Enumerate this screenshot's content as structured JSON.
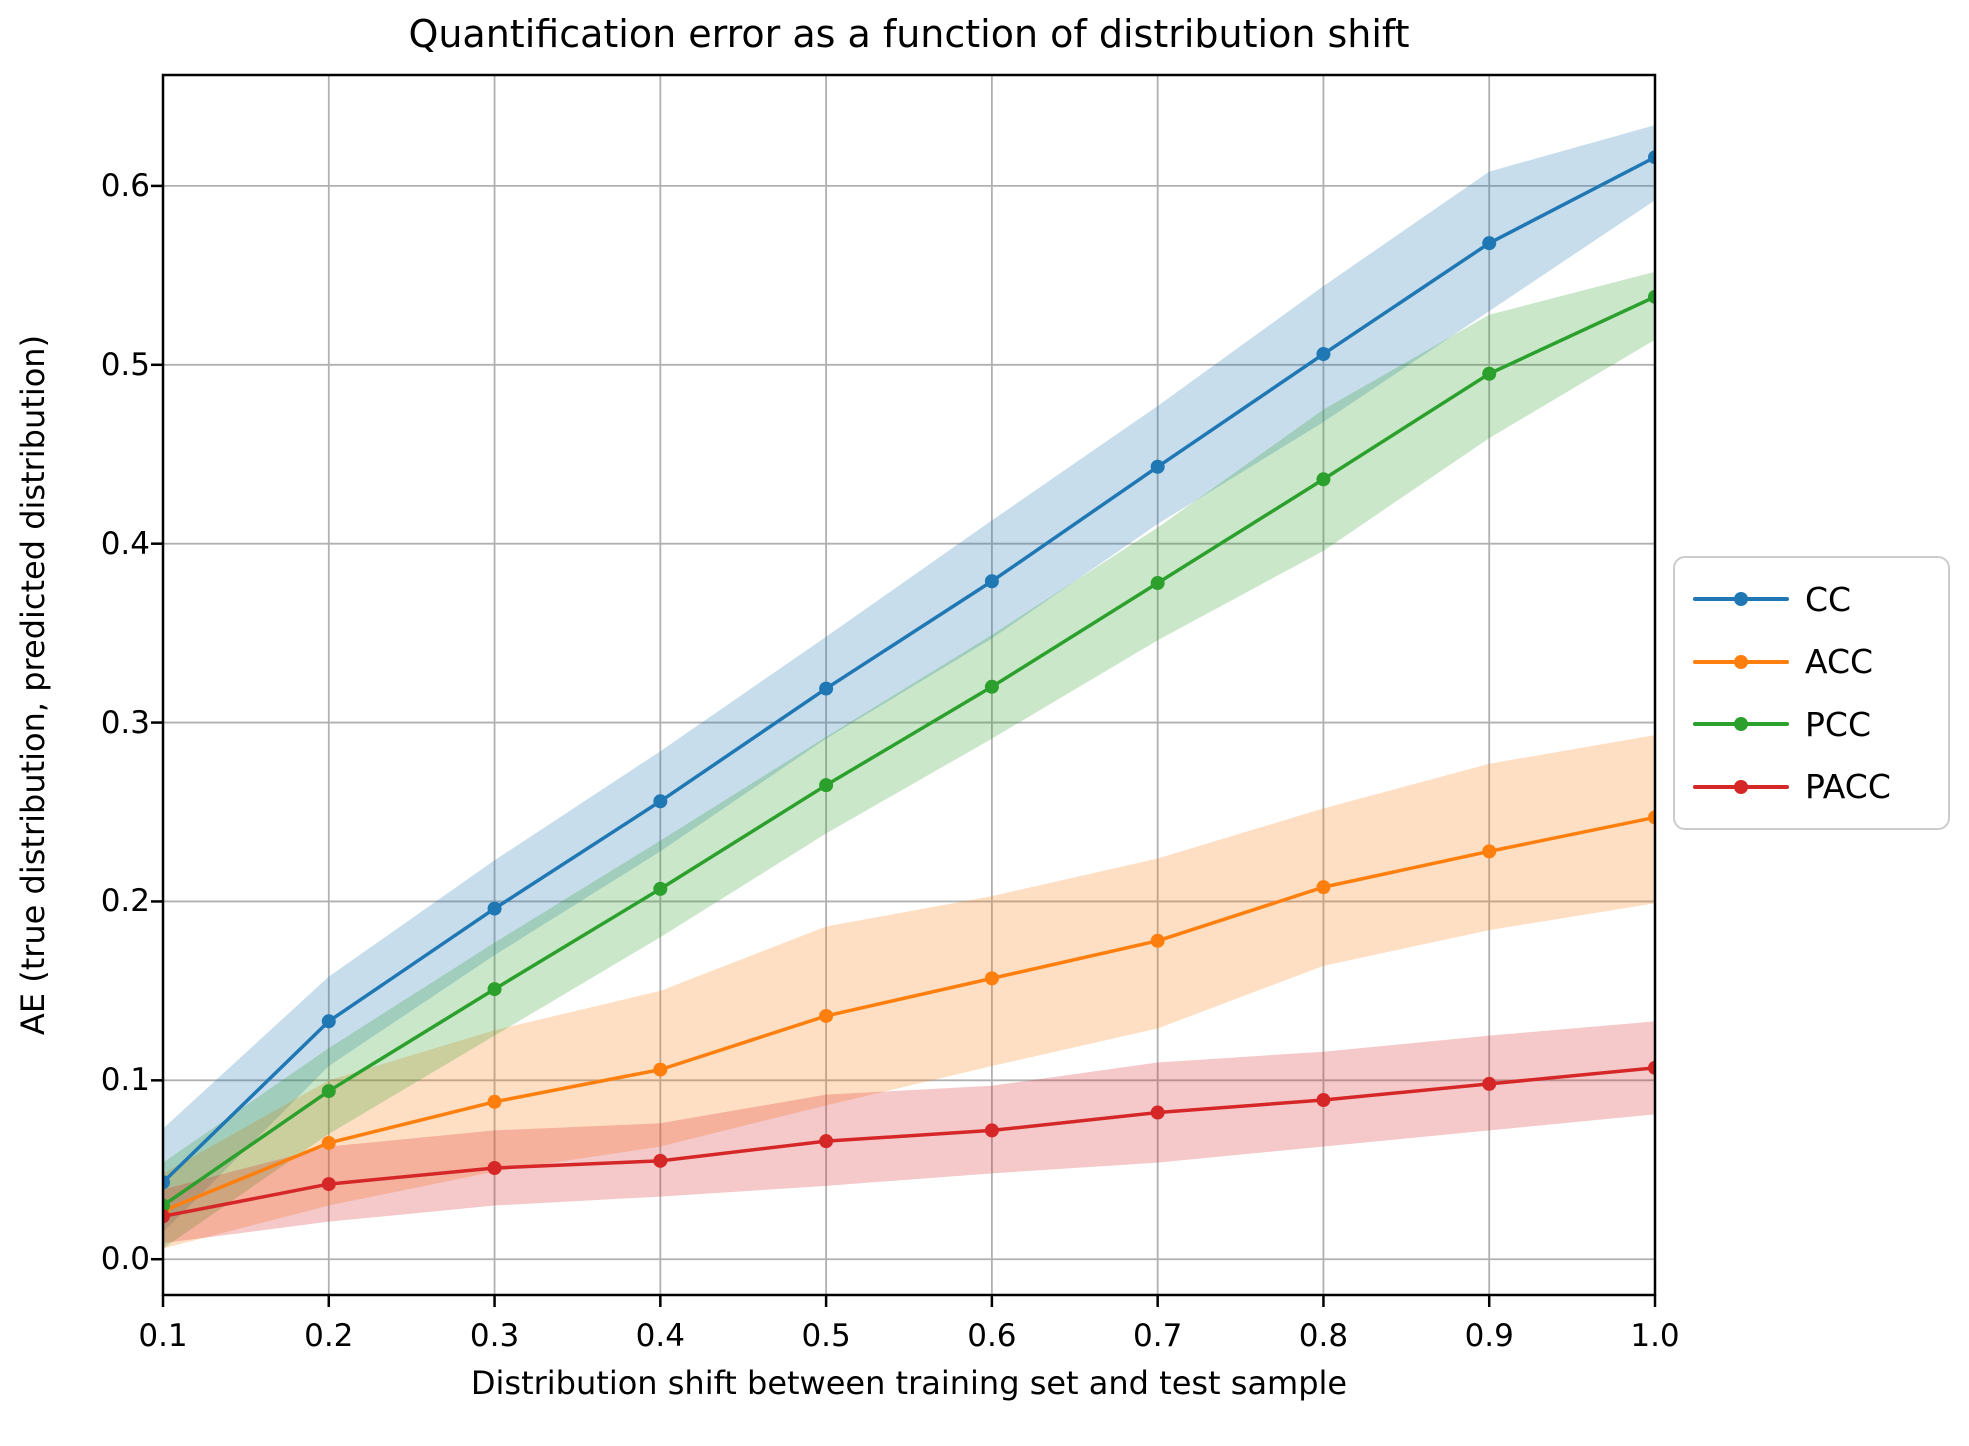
{
  "figure": {
    "title": "Quantification error as a function of distribution shift",
    "xlabel": "Distribution shift between training set and test sample",
    "ylabel": "AE (true distribution, predicted distribution)"
  },
  "chart_data": {
    "type": "line",
    "title": "Quantification error as a function of distribution shift",
    "xlabel": "Distribution shift between training set and test sample",
    "ylabel": "AE (true distribution, predicted distribution)",
    "grid": true,
    "grid_color": "#b0b0b0",
    "background": "#ffffff",
    "legend_position": "right-outside-center",
    "band_alpha": 0.25,
    "marker": "circle",
    "x": [
      0.1,
      0.2,
      0.3,
      0.4,
      0.5,
      0.6,
      0.7,
      0.8,
      0.9,
      1.0
    ],
    "x_tick_labels": [
      "0.1",
      "0.2",
      "0.3",
      "0.4",
      "0.5",
      "0.6",
      "0.7",
      "0.8",
      "0.9",
      "1.0"
    ],
    "y_ticks": [
      0.0,
      0.1,
      0.2,
      0.3,
      0.4,
      0.5,
      0.6
    ],
    "y_tick_labels": [
      "0.0",
      "0.1",
      "0.2",
      "0.3",
      "0.4",
      "0.5",
      "0.6"
    ],
    "xlim": [
      0.1,
      1.0
    ],
    "ylim": [
      -0.02,
      0.662
    ],
    "series": [
      {
        "name": "CC",
        "color": "#1f77b4",
        "values": [
          0.043,
          0.133,
          0.196,
          0.256,
          0.319,
          0.379,
          0.443,
          0.506,
          0.568,
          0.616
        ],
        "band_lo": [
          0.015,
          0.108,
          0.17,
          0.228,
          0.291,
          0.347,
          0.411,
          0.468,
          0.53,
          0.592
        ],
        "band_hi": [
          0.073,
          0.158,
          0.223,
          0.284,
          0.348,
          0.413,
          0.477,
          0.544,
          0.608,
          0.634
        ]
      },
      {
        "name": "ACC",
        "color": "#ff7f0e",
        "values": [
          0.027,
          0.065,
          0.088,
          0.106,
          0.136,
          0.157,
          0.178,
          0.208,
          0.228,
          0.247
        ],
        "band_lo": [
          0.006,
          0.03,
          0.049,
          0.063,
          0.086,
          0.108,
          0.129,
          0.164,
          0.184,
          0.199
        ],
        "band_hi": [
          0.048,
          0.1,
          0.128,
          0.15,
          0.186,
          0.203,
          0.224,
          0.252,
          0.277,
          0.293
        ]
      },
      {
        "name": "PCC",
        "color": "#2ca02c",
        "values": [
          0.03,
          0.094,
          0.151,
          0.207,
          0.265,
          0.32,
          0.378,
          0.436,
          0.495,
          0.538
        ],
        "band_lo": [
          0.006,
          0.07,
          0.125,
          0.18,
          0.238,
          0.291,
          0.346,
          0.396,
          0.459,
          0.514
        ],
        "band_hi": [
          0.054,
          0.118,
          0.177,
          0.234,
          0.292,
          0.349,
          0.409,
          0.475,
          0.528,
          0.552
        ]
      },
      {
        "name": "PACC",
        "color": "#d62728",
        "values": [
          0.024,
          0.042,
          0.051,
          0.055,
          0.066,
          0.072,
          0.082,
          0.089,
          0.098,
          0.107
        ],
        "band_lo": [
          0.009,
          0.021,
          0.03,
          0.035,
          0.041,
          0.048,
          0.054,
          0.063,
          0.072,
          0.081
        ],
        "band_hi": [
          0.039,
          0.063,
          0.072,
          0.076,
          0.092,
          0.097,
          0.11,
          0.116,
          0.125,
          0.133
        ]
      }
    ]
  }
}
